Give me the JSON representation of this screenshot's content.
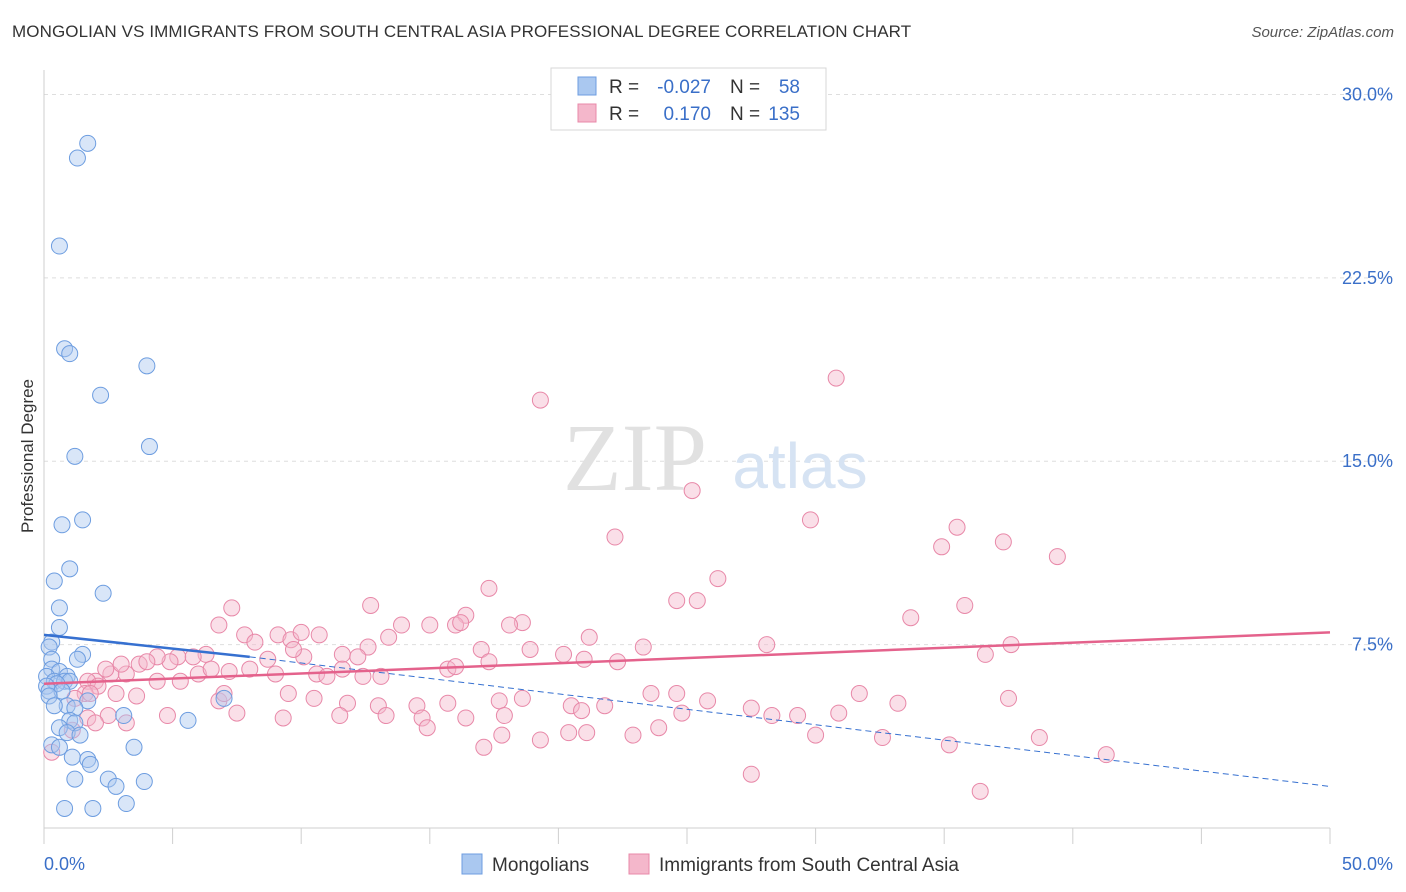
{
  "title": "MONGOLIAN VS IMMIGRANTS FROM SOUTH CENTRAL ASIA PROFESSIONAL DEGREE CORRELATION CHART",
  "source": "Source: ZipAtlas.com",
  "watermark": {
    "zip": "ZIP",
    "atlas": "atlas"
  },
  "colors": {
    "blue": "#6d9de0",
    "blue_fill": "#aac8f0",
    "blue_line": "#3670d0",
    "pink": "#e888a8",
    "pink_fill": "#f4b7cb",
    "pink_line": "#e4628c",
    "axis_text": "#3a6fc8",
    "grid": "#dedede"
  },
  "legend": {
    "rows": [
      {
        "r_label": "R =",
        "r_value": "-0.027",
        "n_label": "N =",
        "n_value": "58",
        "color": "blue"
      },
      {
        "r_label": "R =",
        "r_value": "0.170",
        "n_label": "N =",
        "n_value": "135",
        "color": "pink"
      }
    ]
  },
  "chart_data": {
    "type": "scatter",
    "title": "MONGOLIAN VS IMMIGRANTS FROM SOUTH CENTRAL ASIA PROFESSIONAL DEGREE CORRELATION CHART",
    "ylabel": "Professional Degree",
    "xlabel": "",
    "xlim": [
      0,
      50
    ],
    "ylim": [
      0,
      31
    ],
    "x_tick_labels": [
      "0.0%",
      "50.0%"
    ],
    "y_ticks": [
      7.5,
      15.0,
      22.5,
      30.0
    ],
    "y_tick_labels": [
      "7.5%",
      "15.0%",
      "22.5%",
      "30.0%"
    ],
    "grid": true,
    "series": [
      {
        "name": "Mongolians",
        "color": "blue",
        "r": -0.027,
        "n": 58,
        "trend_solid": [
          [
            0,
            7.9
          ],
          [
            8,
            7.0
          ]
        ],
        "trend_dashed": [
          [
            8,
            7.0
          ],
          [
            50,
            1.7
          ]
        ],
        "points": [
          [
            1.7,
            28.0
          ],
          [
            1.3,
            27.4
          ],
          [
            0.6,
            23.8
          ],
          [
            0.8,
            19.6
          ],
          [
            1.0,
            19.4
          ],
          [
            4.0,
            18.9
          ],
          [
            2.2,
            17.7
          ],
          [
            4.1,
            15.6
          ],
          [
            1.2,
            15.2
          ],
          [
            1.5,
            12.6
          ],
          [
            0.7,
            12.4
          ],
          [
            1.0,
            10.6
          ],
          [
            0.4,
            10.1
          ],
          [
            2.3,
            9.6
          ],
          [
            0.6,
            9.0
          ],
          [
            0.6,
            8.2
          ],
          [
            0.3,
            7.6
          ],
          [
            0.2,
            7.4
          ],
          [
            1.5,
            7.1
          ],
          [
            0.3,
            6.9
          ],
          [
            1.3,
            6.9
          ],
          [
            0.3,
            6.5
          ],
          [
            0.6,
            6.4
          ],
          [
            0.9,
            6.2
          ],
          [
            0.1,
            6.2
          ],
          [
            0.4,
            6.0
          ],
          [
            0.8,
            6.0
          ],
          [
            1.0,
            6.0
          ],
          [
            0.5,
            5.9
          ],
          [
            0.1,
            5.8
          ],
          [
            0.2,
            5.6
          ],
          [
            0.7,
            5.6
          ],
          [
            0.2,
            5.4
          ],
          [
            7.0,
            5.3
          ],
          [
            1.7,
            5.2
          ],
          [
            0.9,
            5.0
          ],
          [
            1.2,
            4.9
          ],
          [
            3.1,
            4.6
          ],
          [
            5.6,
            4.4
          ],
          [
            1.0,
            4.4
          ],
          [
            1.2,
            4.3
          ],
          [
            0.6,
            4.1
          ],
          [
            0.9,
            3.9
          ],
          [
            1.4,
            3.8
          ],
          [
            0.3,
            3.4
          ],
          [
            3.5,
            3.3
          ],
          [
            0.6,
            3.3
          ],
          [
            1.1,
            2.9
          ],
          [
            1.7,
            2.8
          ],
          [
            1.8,
            2.6
          ],
          [
            1.2,
            2.0
          ],
          [
            2.5,
            2.0
          ],
          [
            3.9,
            1.9
          ],
          [
            2.8,
            1.7
          ],
          [
            0.8,
            0.8
          ],
          [
            1.9,
            0.8
          ],
          [
            3.2,
            1.0
          ],
          [
            0.4,
            5.0
          ]
        ]
      },
      {
        "name": "Immigrants from South Central Asia",
        "color": "pink",
        "r": 0.17,
        "n": 135,
        "trend": [
          [
            0,
            5.9
          ],
          [
            50,
            8.0
          ]
        ],
        "points": [
          [
            30.8,
            18.4
          ],
          [
            19.3,
            17.5
          ],
          [
            25.2,
            13.8
          ],
          [
            29.8,
            12.6
          ],
          [
            35.5,
            12.3
          ],
          [
            22.2,
            11.9
          ],
          [
            37.3,
            11.7
          ],
          [
            34.9,
            11.5
          ],
          [
            39.4,
            11.1
          ],
          [
            26.2,
            10.2
          ],
          [
            17.3,
            9.8
          ],
          [
            24.6,
            9.3
          ],
          [
            25.4,
            9.3
          ],
          [
            35.8,
            9.1
          ],
          [
            12.7,
            9.1
          ],
          [
            7.3,
            9.0
          ],
          [
            33.7,
            8.6
          ],
          [
            16.4,
            8.7
          ],
          [
            15.0,
            8.3
          ],
          [
            16.0,
            8.3
          ],
          [
            16.2,
            8.4
          ],
          [
            18.6,
            8.4
          ],
          [
            18.1,
            8.3
          ],
          [
            13.9,
            8.3
          ],
          [
            6.8,
            8.3
          ],
          [
            7.8,
            7.9
          ],
          [
            9.1,
            7.9
          ],
          [
            9.6,
            7.7
          ],
          [
            10.0,
            8.0
          ],
          [
            10.7,
            7.9
          ],
          [
            12.6,
            7.4
          ],
          [
            13.4,
            7.8
          ],
          [
            8.2,
            7.6
          ],
          [
            21.2,
            7.8
          ],
          [
            23.3,
            7.4
          ],
          [
            28.1,
            7.5
          ],
          [
            36.6,
            7.1
          ],
          [
            37.6,
            7.5
          ],
          [
            11.6,
            7.1
          ],
          [
            12.2,
            7.0
          ],
          [
            10.1,
            7.0
          ],
          [
            9.7,
            7.3
          ],
          [
            8.7,
            6.9
          ],
          [
            6.3,
            7.1
          ],
          [
            5.2,
            7.0
          ],
          [
            4.9,
            6.8
          ],
          [
            4.4,
            7.0
          ],
          [
            5.8,
            7.0
          ],
          [
            17.0,
            7.3
          ],
          [
            18.9,
            7.3
          ],
          [
            20.2,
            7.1
          ],
          [
            21.0,
            6.9
          ],
          [
            22.3,
            6.8
          ],
          [
            17.3,
            6.8
          ],
          [
            15.7,
            6.5
          ],
          [
            16.0,
            6.6
          ],
          [
            11.6,
            6.5
          ],
          [
            10.6,
            6.3
          ],
          [
            6.0,
            6.3
          ],
          [
            6.5,
            6.5
          ],
          [
            7.2,
            6.4
          ],
          [
            8.0,
            6.5
          ],
          [
            9.0,
            6.3
          ],
          [
            11.0,
            6.2
          ],
          [
            12.4,
            6.2
          ],
          [
            13.1,
            6.2
          ],
          [
            5.3,
            6.0
          ],
          [
            4.4,
            6.0
          ],
          [
            3.2,
            6.3
          ],
          [
            2.6,
            6.3
          ],
          [
            2.4,
            6.5
          ],
          [
            3.0,
            6.7
          ],
          [
            3.7,
            6.7
          ],
          [
            4.0,
            6.8
          ],
          [
            2.0,
            6.0
          ],
          [
            1.7,
            6.0
          ],
          [
            2.1,
            5.8
          ],
          [
            1.6,
            5.5
          ],
          [
            1.2,
            5.3
          ],
          [
            1.8,
            5.5
          ],
          [
            2.8,
            5.5
          ],
          [
            3.6,
            5.4
          ],
          [
            6.8,
            5.2
          ],
          [
            7.0,
            5.5
          ],
          [
            9.5,
            5.5
          ],
          [
            10.5,
            5.3
          ],
          [
            11.8,
            5.1
          ],
          [
            13.0,
            5.0
          ],
          [
            14.5,
            5.0
          ],
          [
            15.7,
            5.1
          ],
          [
            17.7,
            5.2
          ],
          [
            18.6,
            5.3
          ],
          [
            20.5,
            5.0
          ],
          [
            21.8,
            5.0
          ],
          [
            23.6,
            5.5
          ],
          [
            24.6,
            5.5
          ],
          [
            25.8,
            5.2
          ],
          [
            27.5,
            4.9
          ],
          [
            29.3,
            4.6
          ],
          [
            31.7,
            5.5
          ],
          [
            33.2,
            5.1
          ],
          [
            37.5,
            5.3
          ],
          [
            4.8,
            4.6
          ],
          [
            7.5,
            4.7
          ],
          [
            9.3,
            4.5
          ],
          [
            11.5,
            4.6
          ],
          [
            13.3,
            4.6
          ],
          [
            14.7,
            4.5
          ],
          [
            16.4,
            4.5
          ],
          [
            17.9,
            4.6
          ],
          [
            20.9,
            4.8
          ],
          [
            24.8,
            4.7
          ],
          [
            28.3,
            4.6
          ],
          [
            30.9,
            4.7
          ],
          [
            3.2,
            4.3
          ],
          [
            2.5,
            4.6
          ],
          [
            1.7,
            4.5
          ],
          [
            2.0,
            4.3
          ],
          [
            1.1,
            4.0
          ],
          [
            14.9,
            4.1
          ],
          [
            19.3,
            3.6
          ],
          [
            20.4,
            3.9
          ],
          [
            21.1,
            3.9
          ],
          [
            22.9,
            3.8
          ],
          [
            23.9,
            4.1
          ],
          [
            30.0,
            3.8
          ],
          [
            32.6,
            3.7
          ],
          [
            35.2,
            3.4
          ],
          [
            38.7,
            3.7
          ],
          [
            17.8,
            3.8
          ],
          [
            17.1,
            3.3
          ],
          [
            41.3,
            3.0
          ],
          [
            27.5,
            2.2
          ],
          [
            36.4,
            1.5
          ],
          [
            0.3,
            3.1
          ]
        ]
      }
    ]
  },
  "bottom_legend": [
    {
      "label": "Mongolians",
      "color": "blue"
    },
    {
      "label": "Immigrants from South Central Asia",
      "color": "pink"
    }
  ]
}
